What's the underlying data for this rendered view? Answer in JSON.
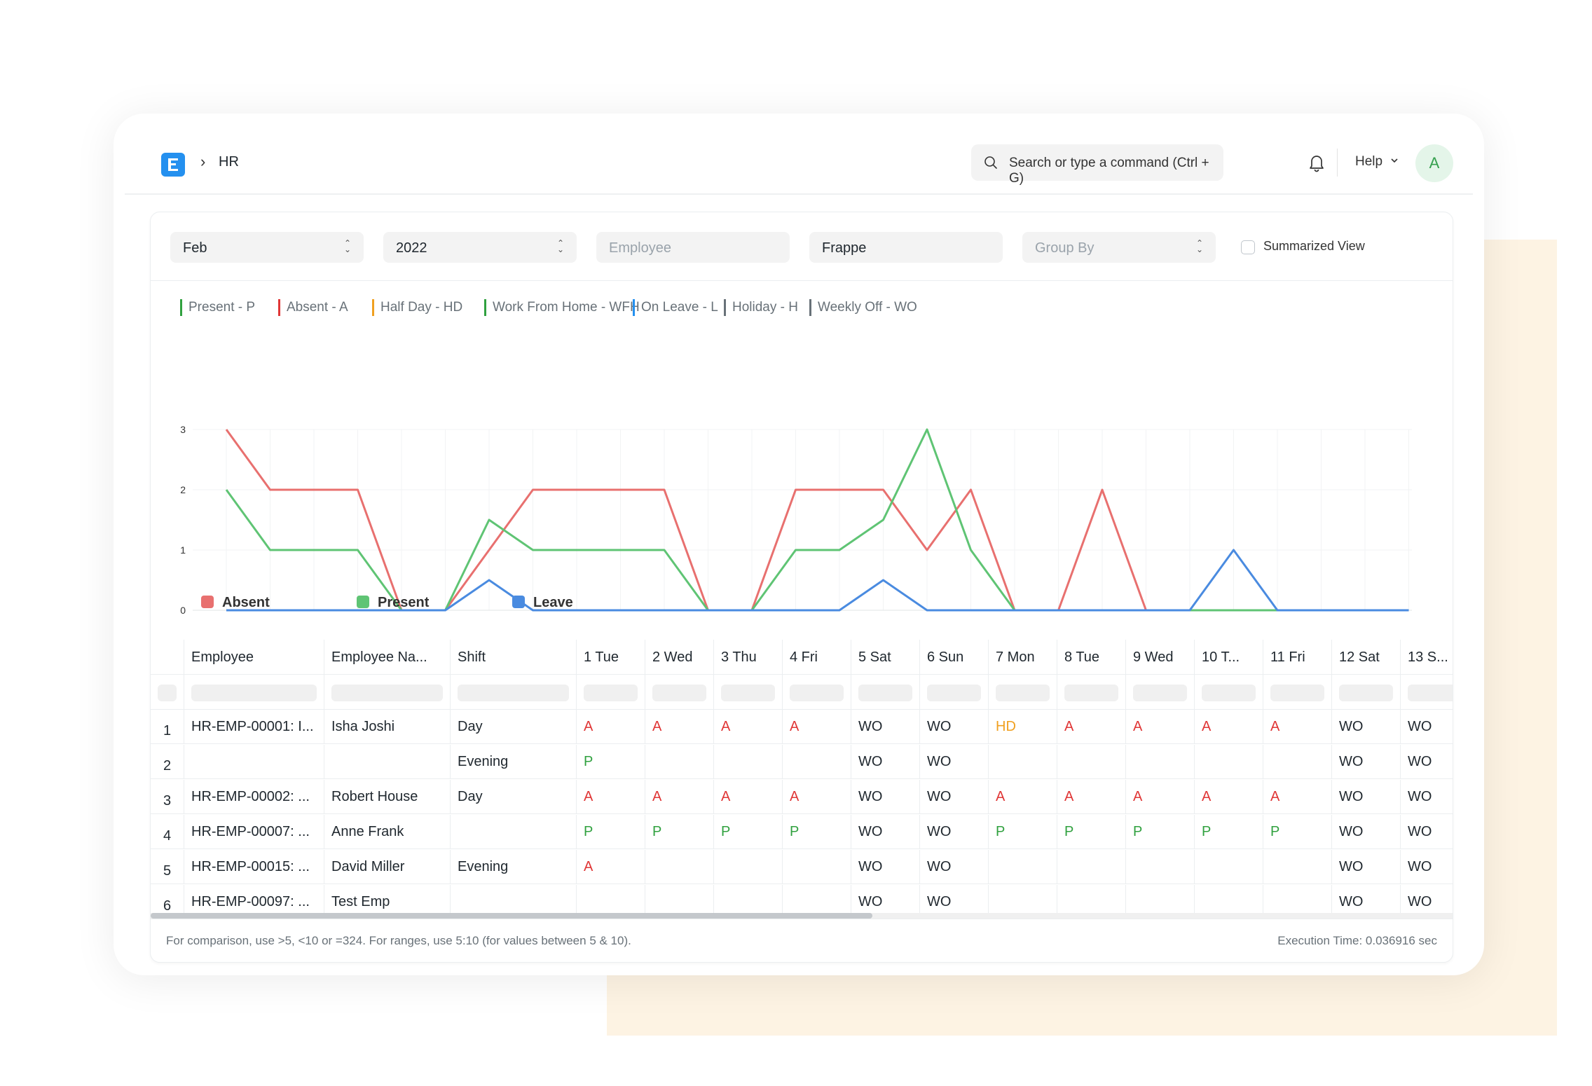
{
  "navbar": {
    "breadcrumb": "HR",
    "search_placeholder": "Search or type a command (Ctrl + G)",
    "help_label": "Help",
    "avatar_initial": "A"
  },
  "filters": {
    "month": "Feb",
    "year": "2022",
    "employee_placeholder": "Employee",
    "company": "Frappe",
    "group_by_placeholder": "Group By",
    "summarized_label": "Summarized View"
  },
  "legend": [
    {
      "label": "Present - P",
      "color": "#30a13f"
    },
    {
      "label": "Absent - A",
      "color": "#e03636"
    },
    {
      "label": "Half Day - HD",
      "color": "#f0a020"
    },
    {
      "label": "Work From Home - WFH",
      "color": "#30a13f"
    },
    {
      "label": "On Leave - L",
      "color": "#2490ef"
    },
    {
      "label": "Holiday - H",
      "color": "#687178"
    },
    {
      "label": "Weekly Off - WO",
      "color": "#687178"
    }
  ],
  "chart_data": {
    "type": "line",
    "x": [
      "...",
      "...",
      "...",
      "...",
      "...",
      "...",
      "...",
      "...",
      "...",
      "...",
      "...",
      "...",
      "...",
      "...",
      "...",
      "...",
      "...",
      "...",
      "...",
      "...",
      "...",
      "...",
      "...",
      "...",
      "...",
      "...",
      "...",
      "..."
    ],
    "ylim": [
      0,
      3
    ],
    "yticks": [
      "0",
      "1",
      "2",
      "3"
    ],
    "legend_position": "bottom-left",
    "series": [
      {
        "name": "Absent",
        "color": "#e8706f",
        "values": [
          3,
          2,
          2,
          2,
          0,
          0,
          1,
          2,
          2,
          2,
          2,
          0,
          0,
          2,
          2,
          2,
          1,
          2,
          0,
          0,
          2,
          0,
          0,
          0,
          0,
          0,
          0,
          0
        ]
      },
      {
        "name": "Present",
        "color": "#5fc474",
        "values": [
          2,
          1,
          1,
          1,
          0,
          0,
          1.5,
          1,
          1,
          1,
          1,
          0,
          0,
          1,
          1,
          1.5,
          3,
          1,
          0,
          0,
          0,
          0,
          0,
          0,
          0,
          0,
          0,
          0
        ]
      },
      {
        "name": "Leave",
        "color": "#4a8be0",
        "values": [
          0,
          0,
          0,
          0,
          0,
          0,
          0.5,
          0,
          0,
          0,
          0,
          0,
          0,
          0,
          0,
          0.5,
          0,
          0,
          0,
          0,
          0,
          0,
          0,
          1,
          0,
          0,
          0,
          0
        ]
      }
    ]
  },
  "table": {
    "columns": [
      "Employee",
      "Employee Na...",
      "Shift",
      "1 Tue",
      "2 Wed",
      "3 Thu",
      "4 Fri",
      "5 Sat",
      "6 Sun",
      "7 Mon",
      "8 Tue",
      "9 Wed",
      "10 T...",
      "11 Fri",
      "12 Sat",
      "13 S..."
    ],
    "rows": [
      {
        "n": "1",
        "cells": [
          "HR-EMP-00001: I...",
          "Isha Joshi",
          "Day",
          "A",
          "A",
          "A",
          "A",
          "WO",
          "WO",
          "HD",
          "A",
          "A",
          "A",
          "A",
          "WO",
          "WO"
        ]
      },
      {
        "n": "2",
        "cells": [
          "",
          "",
          "Evening",
          "P",
          "",
          "",
          "",
          "WO",
          "WO",
          "",
          "",
          "",
          "",
          "",
          "WO",
          "WO"
        ]
      },
      {
        "n": "3",
        "cells": [
          "HR-EMP-00002: ...",
          "Robert House",
          "Day",
          "A",
          "A",
          "A",
          "A",
          "WO",
          "WO",
          "A",
          "A",
          "A",
          "A",
          "A",
          "WO",
          "WO"
        ]
      },
      {
        "n": "4",
        "cells": [
          "HR-EMP-00007: ...",
          "Anne Frank",
          "",
          "P",
          "P",
          "P",
          "P",
          "WO",
          "WO",
          "P",
          "P",
          "P",
          "P",
          "P",
          "WO",
          "WO"
        ]
      },
      {
        "n": "5",
        "cells": [
          "HR-EMP-00015: ...",
          "David Miller",
          "Evening",
          "A",
          "",
          "",
          "",
          "WO",
          "WO",
          "",
          "",
          "",
          "",
          "",
          "WO",
          "WO"
        ]
      },
      {
        "n": "6",
        "cells": [
          "HR-EMP-00097: ...",
          "Test Emp",
          "",
          "",
          "",
          "",
          "",
          "WO",
          "WO",
          "",
          "",
          "",
          "",
          "",
          "WO",
          "WO"
        ]
      }
    ]
  },
  "footer": {
    "note": "For comparison, use >5, <10 or =324. For ranges, use 5:10 (for values between 5 & 10).",
    "execution_time": "Execution Time: 0.036916 sec"
  }
}
